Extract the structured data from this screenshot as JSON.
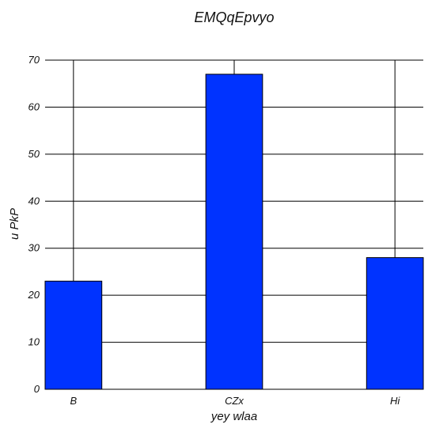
{
  "chart_data": {
    "type": "bar",
    "title": "EMQqEpvyo",
    "xlabel": "yey wlaa",
    "ylabel": "u PkP",
    "categories": [
      "B",
      "CZx",
      "Hi"
    ],
    "values": [
      23,
      67,
      28
    ],
    "ylim": [
      0,
      70
    ],
    "yticks": [
      0,
      10,
      20,
      30,
      40,
      50,
      60,
      70
    ],
    "grid": true,
    "bar_color": "#0033ff"
  }
}
